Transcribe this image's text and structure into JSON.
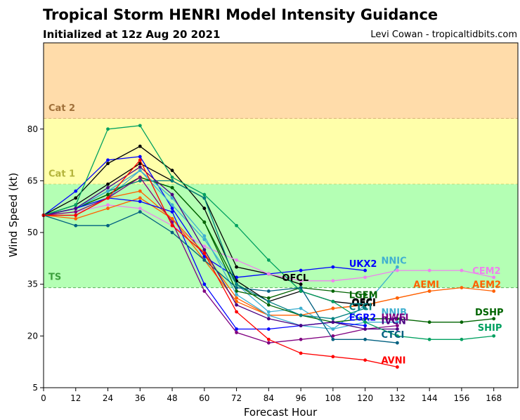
{
  "header": {
    "title": "Tropical Storm HENRI Model Intensity Guidance",
    "subtitle": "Initialized at 12z Aug 20 2021",
    "credit": "Levi Cowan - tropicaltidbits.com"
  },
  "chart_data": {
    "type": "line",
    "xlabel": "Forecast Hour",
    "ylabel": "Wind Speed (kt)",
    "xlim": [
      0,
      177
    ],
    "ylim": [
      5,
      105
    ],
    "xticks": [
      0,
      12,
      24,
      36,
      48,
      60,
      72,
      84,
      96,
      108,
      120,
      132,
      144,
      156,
      168
    ],
    "yticks": [
      5,
      20,
      35,
      50,
      65,
      80
    ],
    "bands": [
      {
        "label": "Cat 2",
        "from": 83,
        "to": 105,
        "color": "#ffdcaa",
        "text_color": "#a0703a"
      },
      {
        "label": "Cat 1",
        "from": 64,
        "to": 83,
        "color": "#ffffaa",
        "text_color": "#b4b43c"
      },
      {
        "label": "TS",
        "from": 34,
        "to": 64,
        "color": "#b4ffb4",
        "text_color": "#3ca03c"
      }
    ],
    "series": [
      {
        "name": "OFCL",
        "color": "#000000",
        "x": [
          0,
          12,
          24,
          36,
          48,
          60,
          72,
          84,
          96
        ],
        "y": [
          55,
          58,
          64,
          70,
          65,
          60,
          40,
          38,
          35
        ]
      },
      {
        "name": "UKX2",
        "color": "#0000ff",
        "x": [
          0,
          12,
          24,
          36,
          48,
          60,
          72,
          96,
          108,
          120
        ],
        "y": [
          55,
          62,
          71,
          72,
          57,
          43,
          37,
          39,
          40,
          39
        ]
      },
      {
        "name": "NNIC",
        "color": "#40b0d0",
        "x": [
          0,
          12,
          24,
          36,
          48,
          60,
          72,
          84,
          96,
          108,
          120,
          132
        ],
        "y": [
          55,
          55,
          60,
          68,
          58,
          48,
          35,
          27,
          28,
          22,
          29,
          40
        ]
      },
      {
        "name": "CEM2",
        "color": "#ee82ee",
        "x": [
          0,
          12,
          24,
          36,
          48,
          60,
          72,
          84,
          96,
          108,
          120,
          132,
          144,
          156,
          168
        ],
        "y": [
          55,
          56,
          58,
          57,
          52,
          46,
          42,
          38,
          36,
          36,
          37,
          39,
          39,
          39,
          37
        ]
      },
      {
        "name": "AEMI",
        "color": "#ff6000",
        "x": [
          0,
          12,
          24,
          36,
          48,
          60,
          72,
          84,
          96,
          108,
          120,
          132,
          144
        ],
        "y": [
          55,
          55,
          60,
          62,
          54,
          42,
          30,
          26,
          26,
          28,
          29,
          31,
          33
        ]
      },
      {
        "name": "AEM2",
        "color": "#ff6000",
        "x": [
          0,
          12,
          24,
          36,
          48,
          60,
          72,
          84,
          96,
          108,
          120,
          132,
          144,
          156,
          168
        ],
        "y": [
          55,
          54,
          57,
          60,
          54,
          44,
          31,
          26,
          26,
          28,
          29,
          31,
          33,
          34,
          33
        ]
      },
      {
        "name": "LGEM",
        "color": "#006400",
        "x": [
          0,
          12,
          24,
          36,
          48,
          60,
          72,
          84,
          96,
          108,
          120
        ],
        "y": [
          55,
          57,
          61,
          66,
          63,
          53,
          33,
          31,
          34,
          33,
          32
        ]
      },
      {
        "name": "OFCI",
        "color": "#000000",
        "x": [
          0,
          12,
          24,
          36,
          48,
          60,
          72,
          84,
          96,
          108,
          120
        ],
        "y": [
          55,
          60,
          70,
          75,
          68,
          57,
          36,
          30,
          33,
          30,
          29
        ]
      },
      {
        "name": "DSHP",
        "color": "#006400",
        "x": [
          0,
          12,
          24,
          36,
          48,
          60,
          72,
          84,
          96,
          108,
          120,
          132,
          144,
          156,
          168
        ],
        "y": [
          55,
          57,
          61,
          66,
          63,
          53,
          35,
          29,
          26,
          24,
          25,
          25,
          24,
          24,
          25
        ]
      },
      {
        "name": "CTCI",
        "color": "#008080",
        "x": [
          0,
          12,
          24,
          36,
          48,
          60,
          72,
          84,
          96,
          108,
          120
        ],
        "y": [
          55,
          57,
          62,
          65,
          65,
          60,
          35,
          30,
          26,
          25,
          28
        ]
      },
      {
        "name": "NNIB",
        "color": "#40b0d0",
        "x": [
          0,
          12,
          24,
          36,
          48,
          60,
          72,
          84,
          96,
          108,
          120,
          132
        ],
        "y": [
          55,
          57,
          62,
          68,
          60,
          49,
          32,
          26,
          23,
          22,
          24,
          24
        ]
      },
      {
        "name": "EGR2",
        "color": "#0000ff",
        "x": [
          0,
          12,
          24,
          36,
          48,
          60,
          72,
          84,
          96,
          108,
          120
        ],
        "y": [
          55,
          57,
          60,
          59,
          56,
          35,
          22,
          22,
          23,
          24,
          23
        ]
      },
      {
        "name": "HWFI",
        "color": "#800080",
        "x": [
          0,
          12,
          24,
          36,
          48,
          60,
          72,
          84,
          96,
          108,
          120,
          132
        ],
        "y": [
          55,
          56,
          60,
          66,
          53,
          33,
          21,
          18,
          19,
          20,
          22,
          23
        ]
      },
      {
        "name": "IVCN",
        "color": "#4b0082",
        "x": [
          0,
          12,
          24,
          36,
          48,
          60,
          72,
          84,
          96,
          108,
          120,
          132
        ],
        "y": [
          55,
          57,
          63,
          69,
          61,
          45,
          29,
          25,
          23,
          24,
          22,
          22
        ]
      },
      {
        "name": "SHIP",
        "color": "#00a060",
        "x": [
          0,
          12,
          24,
          36,
          48,
          60,
          72,
          84,
          96,
          108,
          120,
          132,
          144,
          156,
          168
        ],
        "y": [
          55,
          58,
          80,
          81,
          66,
          61,
          52,
          42,
          33,
          30,
          24,
          20,
          19,
          19,
          20
        ]
      },
      {
        "name": "CTCI",
        "color": "#006080",
        "x": [
          0,
          12,
          24,
          36,
          48,
          60,
          72,
          84,
          96,
          108,
          120,
          132
        ],
        "y": [
          55,
          52,
          52,
          56,
          50,
          42,
          34,
          33,
          34,
          19,
          19,
          18
        ]
      },
      {
        "name": "AVNI",
        "color": "#ff0000",
        "x": [
          0,
          12,
          24,
          36,
          48,
          60,
          72,
          84,
          96,
          108,
          120,
          132
        ],
        "y": [
          55,
          55,
          60,
          71,
          52,
          44,
          27,
          19,
          15,
          14,
          13,
          11
        ]
      }
    ],
    "labels": [
      {
        "text": "UKX2",
        "color": "#0000ff",
        "x": 114,
        "y": 41
      },
      {
        "text": "NNIC",
        "color": "#40b0d0",
        "x": 126,
        "y": 42
      },
      {
        "text": "CEM2",
        "color": "#ee82ee",
        "x": 160,
        "y": 39
      },
      {
        "text": "OFCL",
        "color": "#000000",
        "x": 89,
        "y": 37
      },
      {
        "text": "AEMI",
        "color": "#ff6000",
        "x": 138,
        "y": 35
      },
      {
        "text": "AEM2",
        "color": "#ff6000",
        "x": 160,
        "y": 35
      },
      {
        "text": "LGEM",
        "color": "#006400",
        "x": 114,
        "y": 32
      },
      {
        "text": "OFCI",
        "color": "#000000",
        "x": 115,
        "y": 30
      },
      {
        "text": "OFCI",
        "color": "#000000",
        "x": 115,
        "y": 29.6
      },
      {
        "text": "CTCI",
        "color": "#008080",
        "x": 114,
        "y": 28.5
      },
      {
        "text": "NNIB",
        "color": "#40b0d0",
        "x": 126,
        "y": 27
      },
      {
        "text": "DSHP",
        "color": "#006400",
        "x": 161,
        "y": 27
      },
      {
        "text": "EGR2",
        "color": "#0000ff",
        "x": 114,
        "y": 25.5
      },
      {
        "text": "HWFI",
        "color": "#800080",
        "x": 126,
        "y": 25.5
      },
      {
        "text": "IVCN",
        "color": "#4b0082",
        "x": 126,
        "y": 24.5
      },
      {
        "text": "SHIP",
        "color": "#00a060",
        "x": 162,
        "y": 22.5
      },
      {
        "text": "CTCI",
        "color": "#006080",
        "x": 126,
        "y": 20.5
      },
      {
        "text": "AVNI",
        "color": "#ff0000",
        "x": 126,
        "y": 13
      }
    ]
  }
}
